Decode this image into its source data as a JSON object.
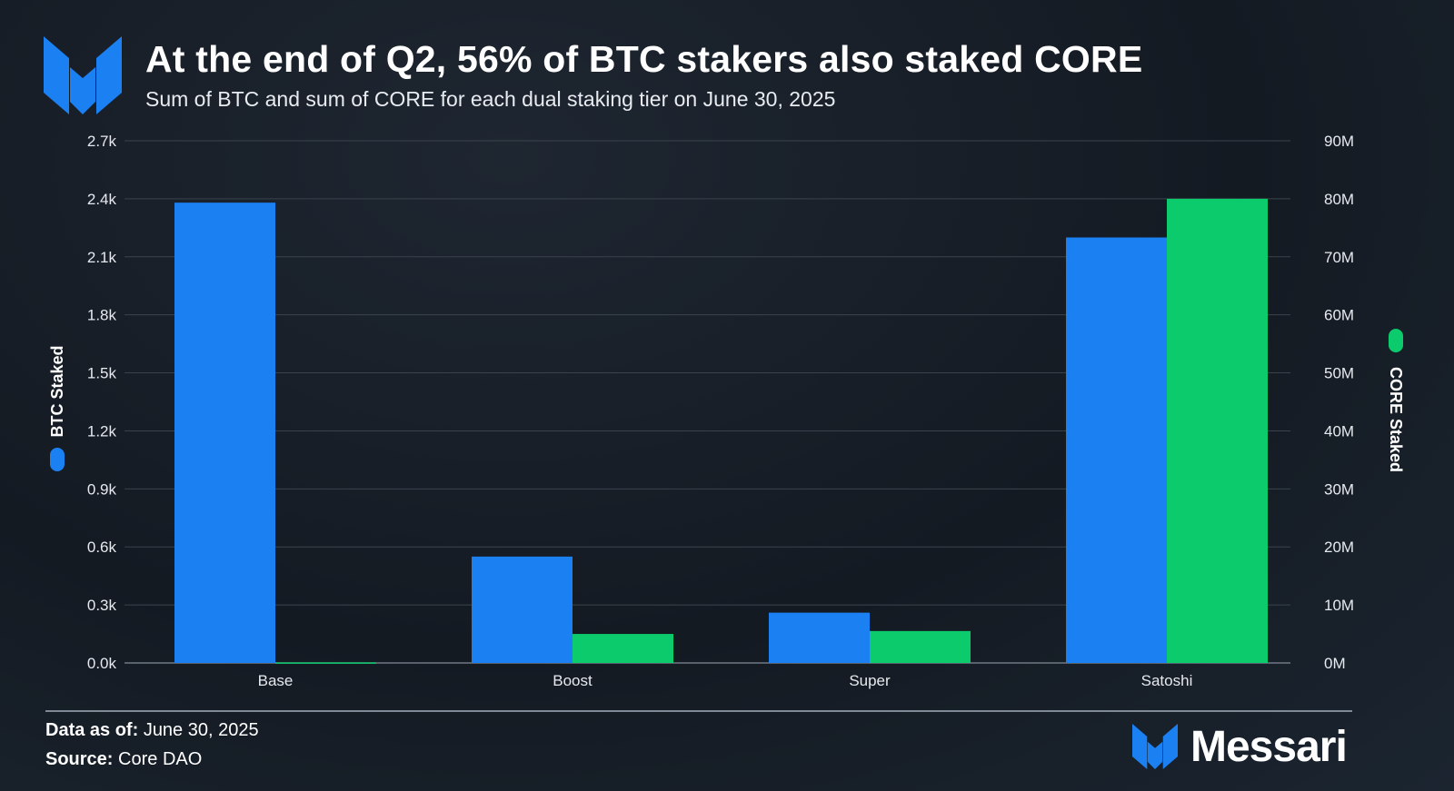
{
  "header": {
    "title": "At the end of Q2, 56% of BTC stakers also staked CORE",
    "subtitle": "Sum of BTC and sum of CORE for each dual staking tier on June 30, 2025"
  },
  "footer": {
    "data_as_of_label": "Data as of:",
    "data_as_of_value": "June 30, 2025",
    "source_label": "Source:",
    "source_value": "Core DAO",
    "brand_name": "Messari"
  },
  "colors": {
    "btc": "#1b80f2",
    "core": "#0ccb6c",
    "grid": "#3a434d",
    "brand": "#1b80f2"
  },
  "chart_data": {
    "type": "bar",
    "categories": [
      "Base",
      "Boost",
      "Super",
      "Satoshi"
    ],
    "series": [
      {
        "name": "BTC Staked",
        "axis": "left",
        "values": [
          2380,
          550,
          260,
          2200
        ]
      },
      {
        "name": "CORE Staked",
        "axis": "right",
        "values": [
          100000,
          5000000,
          5500000,
          80000000
        ]
      }
    ],
    "left_axis": {
      "label": "BTC Staked",
      "ylim": [
        0,
        2700
      ],
      "ticks": [
        0,
        300,
        600,
        900,
        1200,
        1500,
        1800,
        2100,
        2400,
        2700
      ],
      "tick_labels": [
        "0.0k",
        "0.3k",
        "0.6k",
        "0.9k",
        "1.2k",
        "1.5k",
        "1.8k",
        "2.1k",
        "2.4k",
        "2.7k"
      ]
    },
    "right_axis": {
      "label": "CORE Staked",
      "ylim": [
        0,
        90000000
      ],
      "ticks": [
        0,
        10000000,
        20000000,
        30000000,
        40000000,
        50000000,
        60000000,
        70000000,
        80000000,
        90000000
      ],
      "tick_labels": [
        "0M",
        "10M",
        "20M",
        "30M",
        "40M",
        "50M",
        "60M",
        "70M",
        "80M",
        "90M"
      ]
    },
    "grid": true
  }
}
